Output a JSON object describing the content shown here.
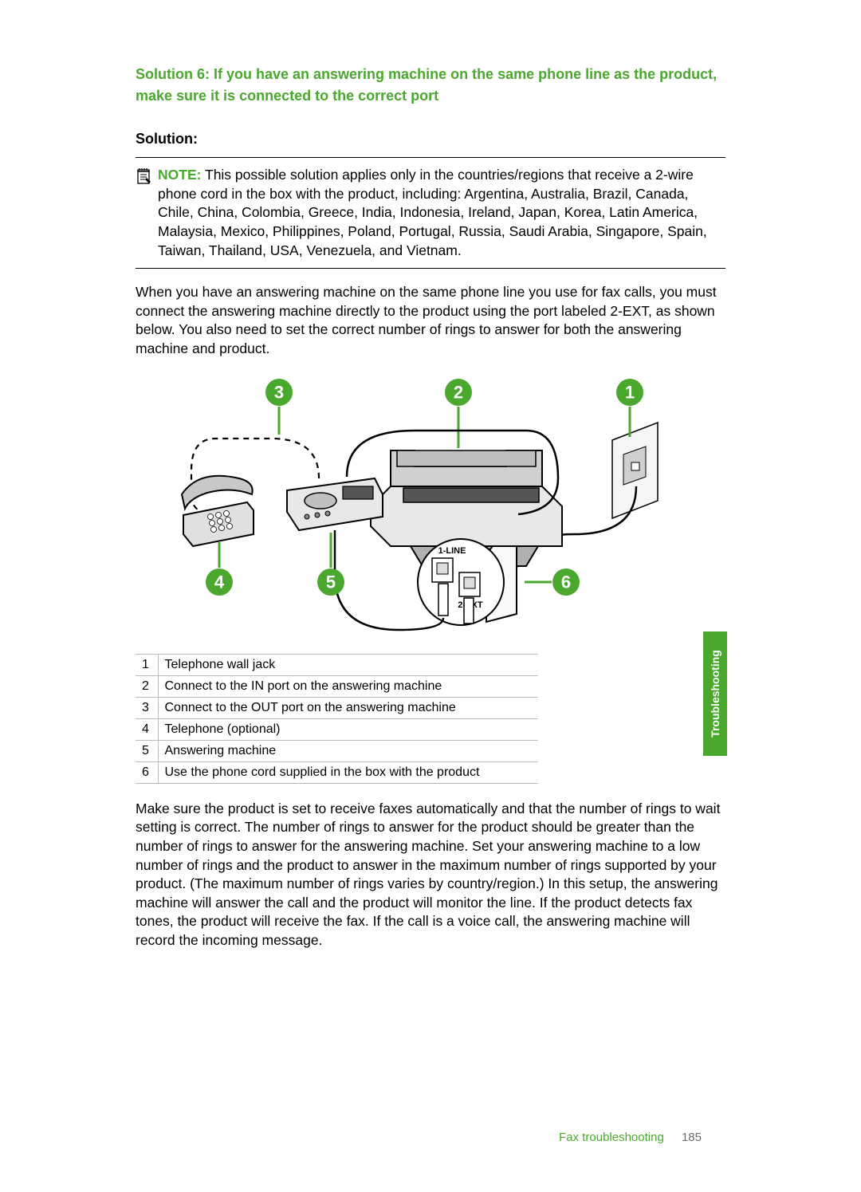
{
  "heading": "Solution 6: If you have an answering machine on the same phone line as the product, make sure it is connected to the correct port",
  "solution_label": "Solution:",
  "note": {
    "label": "NOTE:",
    "text": " This possible solution applies only in the countries/regions that receive a 2-wire phone cord in the box with the product, including: Argentina, Australia, Brazil, Canada, Chile, China, Colombia, Greece, India, Indonesia, Ireland, Japan, Korea, Latin America, Malaysia, Mexico, Philippines, Poland, Portugal, Russia, Saudi Arabia, Singapore, Spain, Taiwan, Thailand, USA, Venezuela, and Vietnam."
  },
  "paragraph1": "When you have an answering machine on the same phone line you use for fax calls, you must connect the answering machine directly to the product using the port labeled 2-EXT, as shown below. You also need to set the correct number of rings to answer for both the answering machine and product.",
  "paragraph2": "Make sure the product is set to receive faxes automatically and that the number of rings to wait setting is correct. The number of rings to answer for the product should be greater than the number of rings to answer for the answering machine. Set your answering machine to a low number of rings and the product to answer in the maximum number of rings supported by your product. (The maximum number of rings varies by country/region.) In this setup, the answering machine will answer the call and the product will monitor the line. If the product detects fax tones, the product will receive the fax. If the call is a voice call, the answering machine will record the incoming message.",
  "diagram": {
    "callouts": {
      "c1": "1",
      "c2": "2",
      "c3": "3",
      "c4": "4",
      "c5": "5",
      "c6": "6"
    },
    "port1": "1-LINE",
    "port2": "2-EXT",
    "colors": {
      "accent": "#4ba82e",
      "line": "#000000",
      "fill_light": "#e8e8e8",
      "fill_mid": "#b0b0b0",
      "fill_dark": "#555555"
    }
  },
  "legend": [
    {
      "n": "1",
      "t": "Telephone wall jack"
    },
    {
      "n": "2",
      "t": "Connect to the IN port on the answering machine"
    },
    {
      "n": "3",
      "t": "Connect to the OUT port on the answering machine"
    },
    {
      "n": "4",
      "t": "Telephone (optional)"
    },
    {
      "n": "5",
      "t": "Answering machine"
    },
    {
      "n": "6",
      "t": "Use the phone cord supplied in the box with the product"
    }
  ],
  "side_tab": "Troubleshooting",
  "footer": {
    "section": "Fax troubleshooting",
    "page": "185"
  }
}
